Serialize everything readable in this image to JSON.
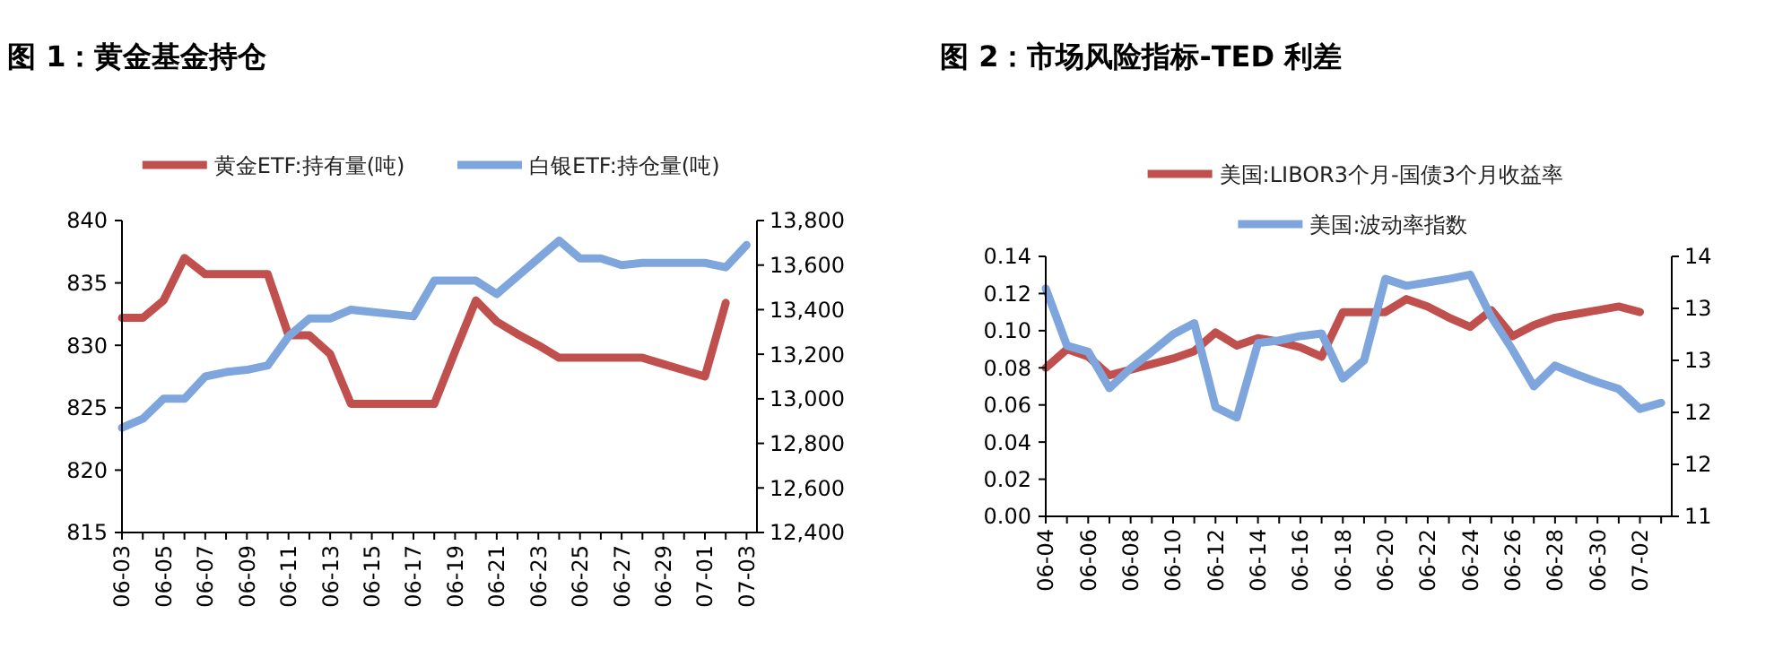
{
  "chart_data": [
    {
      "type": "line",
      "title": "图 1：黄金基金持仓",
      "legend": "top",
      "categories": [
        "06-03",
        null,
        "06-05",
        null,
        "06-07",
        null,
        "06-09",
        null,
        "06-11",
        null,
        "06-13",
        null,
        "06-15",
        null,
        "06-17",
        null,
        "06-19",
        null,
        "06-21",
        null,
        "06-23",
        null,
        "06-25",
        null,
        "06-27",
        null,
        "06-29",
        null,
        "07-01",
        null,
        "07-03"
      ],
      "ylim": [
        815,
        840
      ],
      "yticks": [
        815,
        820,
        825,
        830,
        835,
        840
      ],
      "y2lim": [
        12400,
        13800
      ],
      "y2ticks": [
        {
          "value": 12400,
          "label": "12,400"
        },
        {
          "value": 12600,
          "label": "12,600"
        },
        {
          "value": 12800,
          "label": "12,800"
        },
        {
          "value": 13000,
          "label": "13,000"
        },
        {
          "value": 13200,
          "label": "13,200"
        },
        {
          "value": 13400,
          "label": "13,400"
        },
        {
          "value": 13600,
          "label": "13,600"
        },
        {
          "value": 13800,
          "label": "13,800"
        }
      ],
      "series": [
        {
          "name": "黄金ETF:持有量(吨)",
          "color": "#c0504d",
          "values": [
            832.2,
            832.2,
            833.6,
            837.0,
            835.7,
            835.7,
            835.7,
            835.7,
            830.8,
            830.8,
            829.3,
            825.3,
            825.3,
            825.3,
            825.3,
            825.3,
            829.5,
            833.6,
            831.9,
            830.9,
            830.0,
            829.0,
            829.0,
            829.0,
            829.0,
            829.0,
            828.5,
            828.0,
            827.5,
            833.4,
            null
          ]
        },
        {
          "name": "白银ETF:持仓量(吨)",
          "color": "#7ea6dc",
          "axis": "y2",
          "values": [
            12870,
            12910,
            13000,
            13000,
            13100,
            13120,
            13130,
            13150,
            13280,
            13360,
            13360,
            13400,
            13390,
            13380,
            13370,
            13530,
            13530,
            13530,
            13470,
            13550,
            13630,
            13710,
            13630,
            13630,
            13600,
            13610,
            13610,
            13610,
            13610,
            13590,
            13690
          ]
        }
      ]
    },
    {
      "type": "line",
      "title": "图 2：市场风险指标-TED 利差",
      "legend": "top",
      "categories": [
        "06-04",
        null,
        "06-06",
        null,
        "06-08",
        null,
        "06-10",
        null,
        "06-12",
        null,
        "06-14",
        null,
        "06-16",
        null,
        "06-18",
        null,
        "06-20",
        null,
        "06-22",
        null,
        "06-24",
        null,
        "06-26",
        null,
        "06-28",
        null,
        "06-30",
        null,
        "07-02",
        null
      ],
      "ylim": [
        0,
        0.14
      ],
      "yticks": [
        {
          "value": 0,
          "label": "0.00"
        },
        {
          "value": 0.02,
          "label": "0.02"
        },
        {
          "value": 0.04,
          "label": "0.04"
        },
        {
          "value": 0.06,
          "label": "0.06"
        },
        {
          "value": 0.08,
          "label": "0.08"
        },
        {
          "value": 0.1,
          "label": "0.10"
        },
        {
          "value": 0.12,
          "label": "0.12"
        },
        {
          "value": 0.14,
          "label": "0.14"
        }
      ],
      "y2lim": [
        11,
        14
      ],
      "y2ticks": [
        {
          "value": 11,
          "label": "11"
        },
        {
          "value": 11.6,
          "label": "12"
        },
        {
          "value": 12.2,
          "label": "12"
        },
        {
          "value": 12.8,
          "label": "13"
        },
        {
          "value": 13.4,
          "label": "13"
        },
        {
          "value": 14,
          "label": "14"
        }
      ],
      "series": [
        {
          "name": "美国:LIBOR3个月-国债3个月收益率",
          "color": "#c0504d",
          "values": [
            0.08,
            0.09,
            0.086,
            0.076,
            0.079,
            0.082,
            0.085,
            0.089,
            0.099,
            0.092,
            0.096,
            0.094,
            0.091,
            0.086,
            0.11,
            0.11,
            0.11,
            0.117,
            0.113,
            0.107,
            0.102,
            0.111,
            0.097,
            0.103,
            0.107,
            0.109,
            0.111,
            0.113,
            0.11,
            null
          ]
        },
        {
          "name": "美国:波动率指数",
          "color": "#7ea6dc",
          "axis": "y2",
          "values": [
            13.63,
            12.97,
            12.9,
            12.48,
            12.71,
            12.9,
            13.1,
            13.23,
            12.26,
            12.14,
            13.0,
            13.03,
            13.08,
            13.11,
            12.59,
            12.8,
            13.74,
            13.66,
            13.7,
            13.74,
            13.79,
            13.3,
            12.92,
            12.5,
            12.74,
            12.64,
            12.55,
            12.47,
            12.24,
            12.31
          ]
        }
      ]
    }
  ]
}
